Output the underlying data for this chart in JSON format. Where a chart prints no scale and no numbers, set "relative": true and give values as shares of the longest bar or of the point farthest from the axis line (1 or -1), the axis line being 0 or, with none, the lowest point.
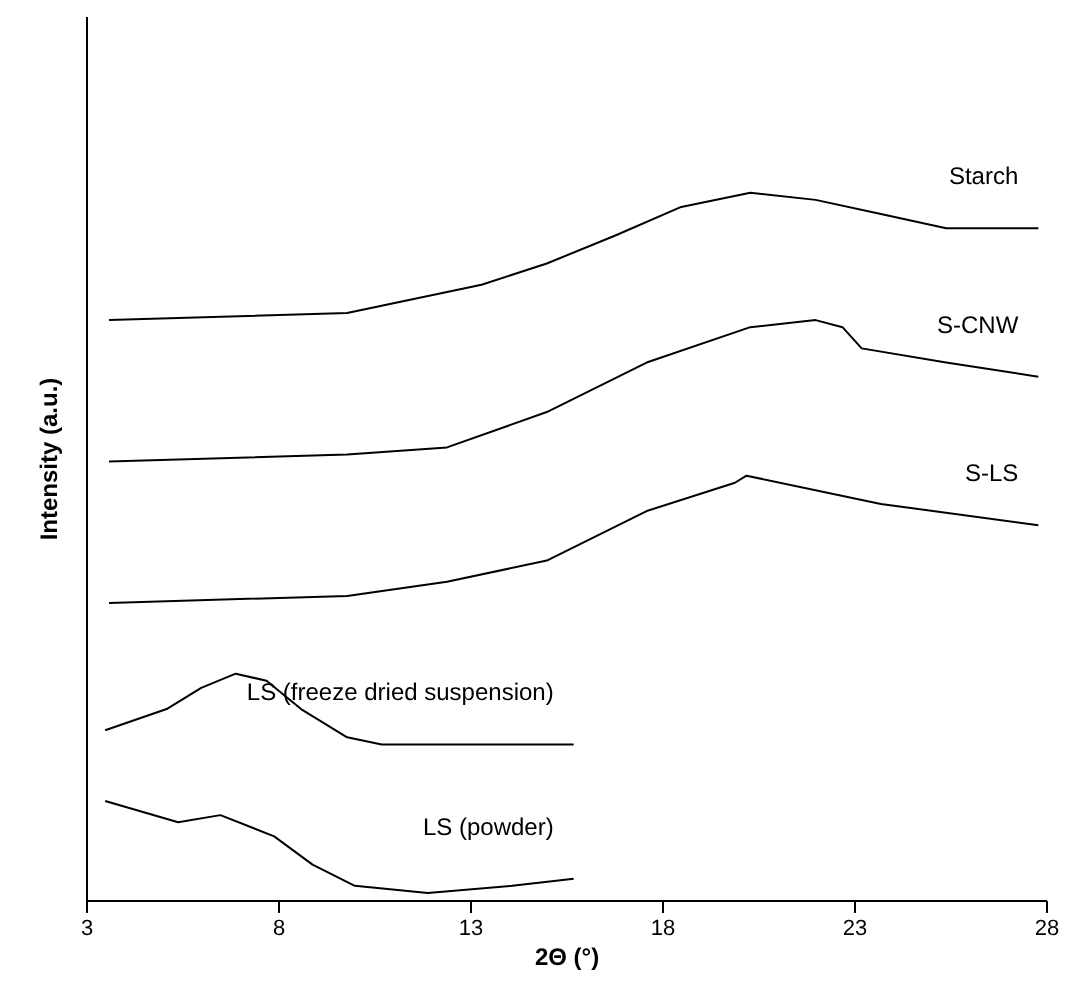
{
  "chart_data": {
    "type": "line",
    "xlabel": "2Θ (°)",
    "ylabel": "Intensity (a.u.)",
    "relative": true,
    "xlim": [
      3,
      28
    ],
    "xticks": [
      3,
      8,
      13,
      18,
      23,
      28
    ],
    "grid": false,
    "marker": "none",
    "line_style": "solid",
    "series": [
      {
        "name": "Starch",
        "color": "#000000",
        "x": [
          3.6,
          9.8,
          13.3,
          15.0,
          16.8,
          18.5,
          20.3,
          22.0,
          23.7,
          25.4,
          27.8
        ],
        "values": [
          0.82,
          0.83,
          0.87,
          0.9,
          0.94,
          0.98,
          1.0,
          0.99,
          0.97,
          0.95,
          0.95
        ]
      },
      {
        "name": "S-CNW",
        "color": "#000000",
        "x": [
          3.6,
          9.8,
          12.4,
          15.0,
          17.6,
          20.3,
          22.0,
          22.7,
          23.2,
          25.4,
          27.8
        ],
        "values": [
          0.62,
          0.63,
          0.64,
          0.69,
          0.76,
          0.81,
          0.82,
          0.81,
          0.78,
          0.76,
          0.74
        ]
      },
      {
        "name": "S-LS",
        "color": "#000000",
        "x": [
          3.6,
          9.8,
          12.4,
          15.0,
          17.6,
          19.9,
          20.2,
          23.7,
          27.8
        ],
        "values": [
          0.42,
          0.43,
          0.45,
          0.48,
          0.55,
          0.59,
          0.6,
          0.56,
          0.53
        ]
      },
      {
        "name": "LS (freeze dried suspension)",
        "color": "#000000",
        "x": [
          3.5,
          5.1,
          6.0,
          6.9,
          7.7,
          8.6,
          9.8,
          10.7,
          15.7
        ],
        "values": [
          0.24,
          0.27,
          0.3,
          0.32,
          0.31,
          0.27,
          0.23,
          0.22,
          0.22
        ]
      },
      {
        "name": "LS (powder)",
        "color": "#000000",
        "x": [
          3.5,
          5.4,
          6.5,
          7.9,
          8.9,
          10.0,
          11.9,
          14.1,
          15.7
        ],
        "values": [
          0.14,
          0.11,
          0.12,
          0.09,
          0.05,
          0.02,
          0.01,
          0.02,
          0.03
        ]
      }
    ]
  }
}
